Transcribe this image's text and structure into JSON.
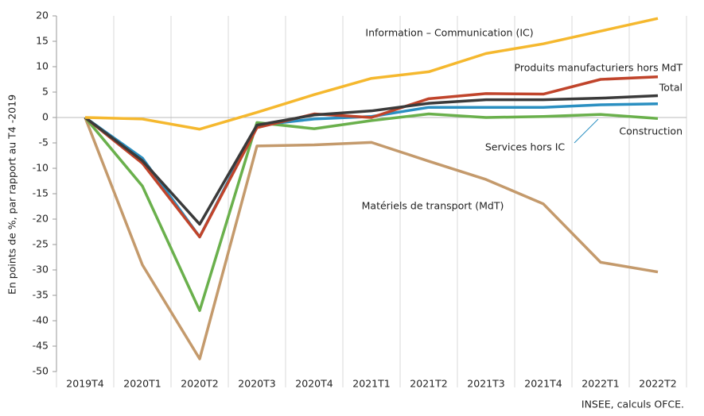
{
  "chart_data": {
    "type": "line",
    "y_label": "En points de %, par rapport au T4 -2019",
    "source": "INSEE, calculs OFCE.",
    "categories": [
      "2019T4",
      "2020T1",
      "2020T2",
      "2020T3",
      "2020T4",
      "2021T1",
      "2021T2",
      "2021T3",
      "2021T4",
      "2022T1",
      "2022T2"
    ],
    "series": [
      {
        "name": "Information – Communication (IC)",
        "color": "#f5b82e",
        "values": [
          0,
          -0.3,
          -2.3,
          1,
          4.5,
          7.7,
          9,
          12.6,
          14.5,
          17,
          19.5
        ]
      },
      {
        "name": "Produits manufacturiers hors MdT",
        "color": "#c0442b",
        "values": [
          0,
          -9,
          -23.5,
          -2,
          0.7,
          0,
          3.7,
          4.7,
          4.6,
          7.5,
          8
        ]
      },
      {
        "name": "Total",
        "color": "#3a3a3a",
        "values": [
          0,
          -8.5,
          -21,
          -1.5,
          0.5,
          1.3,
          2.8,
          3.5,
          3.5,
          3.8,
          4.3
        ]
      },
      {
        "name": "Services hors IC",
        "color": "#2a8fc1",
        "values": [
          0,
          -8,
          -23.5,
          -1.5,
          -0.3,
          0.2,
          2,
          2,
          2,
          2.5,
          2.7
        ]
      },
      {
        "name": "Construction",
        "color": "#6ab04c",
        "values": [
          0,
          -13.5,
          -38,
          -1,
          -2.2,
          -0.6,
          0.7,
          0,
          0.2,
          0.6,
          -0.2
        ]
      },
      {
        "name": "Matériels de transport (MdT)",
        "color": "#c49a6c",
        "values": [
          0,
          -29,
          -47.5,
          -5.6,
          -5.4,
          -4.9,
          -8.6,
          -12.2,
          -17,
          -28.5,
          -30.4
        ]
      }
    ],
    "ylim": [
      -50,
      20
    ],
    "yticks": [
      20,
      15,
      10,
      5,
      0,
      -5,
      -10,
      -15,
      -20,
      -25,
      -30,
      -35,
      -40,
      -45,
      -50
    ]
  }
}
